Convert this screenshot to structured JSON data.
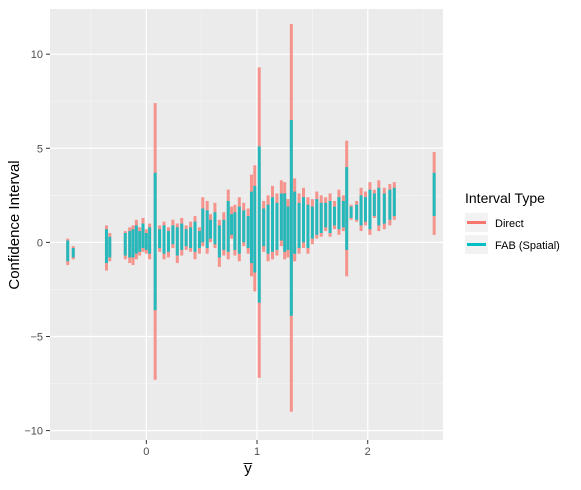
{
  "chart_data": {
    "type": "interval",
    "xlabel": "y̅",
    "ylabel": "Confidence Interval",
    "xlim": [
      -0.87,
      2.68
    ],
    "ylim": [
      -10.5,
      12.4
    ],
    "x_ticks": [
      {
        "value": 0,
        "label": "0"
      },
      {
        "value": 1,
        "label": "1"
      },
      {
        "value": 2,
        "label": "2"
      }
    ],
    "y_ticks": [
      {
        "value": -10,
        "label": "−10"
      },
      {
        "value": -5,
        "label": "−5"
      },
      {
        "value": 0,
        "label": "0"
      },
      {
        "value": 5,
        "label": "5"
      },
      {
        "value": 10,
        "label": "10"
      }
    ],
    "grid": true,
    "legend": {
      "title": "Interval Type",
      "placement": "right",
      "entries": [
        {
          "label": "Direct",
          "color": "#F8766D"
        },
        {
          "label": "FAB (Spatial)",
          "color": "#00BFC4"
        }
      ]
    },
    "series": [
      {
        "name": "Direct",
        "color": "#F8766D",
        "intervals": [
          {
            "x": -0.71,
            "low": -1.2,
            "high": 0.2
          },
          {
            "x": -0.66,
            "low": -0.9,
            "high": -0.2
          },
          {
            "x": -0.36,
            "low": -1.5,
            "high": 0.9
          },
          {
            "x": -0.33,
            "low": -1.0,
            "high": 0.5
          },
          {
            "x": -0.19,
            "low": -0.9,
            "high": 0.6
          },
          {
            "x": -0.15,
            "low": -1.1,
            "high": 0.8
          },
          {
            "x": -0.12,
            "low": -1.2,
            "high": 0.9
          },
          {
            "x": -0.09,
            "low": -0.9,
            "high": 1.2
          },
          {
            "x": -0.06,
            "low": -0.7,
            "high": 0.8
          },
          {
            "x": -0.03,
            "low": -0.5,
            "high": 1.3
          },
          {
            "x": 0.0,
            "low": -0.6,
            "high": 0.7
          },
          {
            "x": 0.03,
            "low": -0.9,
            "high": 1.0
          },
          {
            "x": 0.08,
            "low": -7.3,
            "high": 7.4
          },
          {
            "x": 0.12,
            "low": -0.5,
            "high": 0.9
          },
          {
            "x": 0.16,
            "low": -0.9,
            "high": 1.1
          },
          {
            "x": 0.2,
            "low": -0.8,
            "high": 0.8
          },
          {
            "x": 0.24,
            "low": -0.3,
            "high": 1.2
          },
          {
            "x": 0.28,
            "low": -1.1,
            "high": 1.0
          },
          {
            "x": 0.32,
            "low": -0.7,
            "high": 1.3
          },
          {
            "x": 0.36,
            "low": -0.4,
            "high": 0.9
          },
          {
            "x": 0.4,
            "low": -0.5,
            "high": 1.1
          },
          {
            "x": 0.44,
            "low": -0.9,
            "high": 1.4
          },
          {
            "x": 0.48,
            "low": -0.6,
            "high": 0.8
          },
          {
            "x": 0.51,
            "low": -0.2,
            "high": 2.4
          },
          {
            "x": 0.55,
            "low": -0.6,
            "high": 2.2
          },
          {
            "x": 0.58,
            "low": 0.0,
            "high": 1.5
          },
          {
            "x": 0.62,
            "low": -0.3,
            "high": 2.1
          },
          {
            "x": 0.66,
            "low": -1.3,
            "high": 1.2
          },
          {
            "x": 0.7,
            "low": -0.7,
            "high": 1.6
          },
          {
            "x": 0.74,
            "low": -0.9,
            "high": 2.8
          },
          {
            "x": 0.77,
            "low": 0.2,
            "high": 1.9
          },
          {
            "x": 0.8,
            "low": -0.7,
            "high": 2.0
          },
          {
            "x": 0.84,
            "low": -1.0,
            "high": 2.4
          },
          {
            "x": 0.88,
            "low": -0.2,
            "high": 2.1
          },
          {
            "x": 0.92,
            "low": -0.6,
            "high": 1.8
          },
          {
            "x": 0.95,
            "low": -1.8,
            "high": 3.6
          },
          {
            "x": 0.98,
            "low": -2.6,
            "high": 4.1
          },
          {
            "x": 1.02,
            "low": -7.2,
            "high": 9.3
          },
          {
            "x": 1.06,
            "low": -0.5,
            "high": 2.2
          },
          {
            "x": 1.1,
            "low": -1.0,
            "high": 2.5
          },
          {
            "x": 1.14,
            "low": -0.9,
            "high": 3.0
          },
          {
            "x": 1.18,
            "low": -0.7,
            "high": 2.6
          },
          {
            "x": 1.22,
            "low": -0.2,
            "high": 3.3
          },
          {
            "x": 1.25,
            "low": -0.9,
            "high": 3.2
          },
          {
            "x": 1.28,
            "low": -0.8,
            "high": 2.3
          },
          {
            "x": 1.31,
            "low": -9.0,
            "high": 11.6
          },
          {
            "x": 1.34,
            "low": -1.0,
            "high": 3.4
          },
          {
            "x": 1.38,
            "low": -0.6,
            "high": 2.6
          },
          {
            "x": 1.42,
            "low": -0.3,
            "high": 2.9
          },
          {
            "x": 1.46,
            "low": -0.6,
            "high": 2.4
          },
          {
            "x": 1.5,
            "low": -0.1,
            "high": 2.3
          },
          {
            "x": 1.54,
            "low": 0.2,
            "high": 2.7
          },
          {
            "x": 1.58,
            "low": 0.3,
            "high": 2.5
          },
          {
            "x": 1.62,
            "low": 0.6,
            "high": 2.4
          },
          {
            "x": 1.66,
            "low": 0.3,
            "high": 2.6
          },
          {
            "x": 1.7,
            "low": 0.7,
            "high": 2.2
          },
          {
            "x": 1.74,
            "low": 0.4,
            "high": 2.8
          },
          {
            "x": 1.78,
            "low": 0.6,
            "high": 2.5
          },
          {
            "x": 1.81,
            "low": -1.8,
            "high": 5.4
          },
          {
            "x": 1.85,
            "low": 1.2,
            "high": 2.0
          },
          {
            "x": 1.9,
            "low": 1.1,
            "high": 2.2
          },
          {
            "x": 1.94,
            "low": 0.6,
            "high": 2.9
          },
          {
            "x": 1.98,
            "low": 0.9,
            "high": 2.7
          },
          {
            "x": 2.02,
            "low": 0.4,
            "high": 3.2
          },
          {
            "x": 2.06,
            "low": 1.3,
            "high": 2.8
          },
          {
            "x": 2.1,
            "low": 0.6,
            "high": 3.3
          },
          {
            "x": 2.15,
            "low": 0.7,
            "high": 2.9
          },
          {
            "x": 2.2,
            "low": 0.9,
            "high": 3.1
          },
          {
            "x": 2.24,
            "low": 1.2,
            "high": 3.2
          },
          {
            "x": 2.6,
            "low": 0.4,
            "high": 4.8
          }
        ]
      },
      {
        "name": "FAB (Spatial)",
        "color": "#00BFC4",
        "intervals": [
          {
            "x": -0.71,
            "low": -1.0,
            "high": 0.1
          },
          {
            "x": -0.66,
            "low": -0.8,
            "high": -0.3
          },
          {
            "x": -0.36,
            "low": -1.1,
            "high": 0.7
          },
          {
            "x": -0.33,
            "low": -0.8,
            "high": 0.3
          },
          {
            "x": -0.19,
            "low": -0.7,
            "high": 0.5
          },
          {
            "x": -0.15,
            "low": -0.8,
            "high": 0.6
          },
          {
            "x": -0.12,
            "low": -0.8,
            "high": 0.7
          },
          {
            "x": -0.09,
            "low": -0.6,
            "high": 0.9
          },
          {
            "x": -0.06,
            "low": -0.5,
            "high": 0.6
          },
          {
            "x": -0.03,
            "low": -0.3,
            "high": 1.0
          },
          {
            "x": 0.0,
            "low": -0.4,
            "high": 0.5
          },
          {
            "x": 0.03,
            "low": -0.6,
            "high": 0.8
          },
          {
            "x": 0.08,
            "low": -3.6,
            "high": 3.7
          },
          {
            "x": 0.12,
            "low": -0.3,
            "high": 0.7
          },
          {
            "x": 0.16,
            "low": -0.6,
            "high": 0.9
          },
          {
            "x": 0.2,
            "low": -0.5,
            "high": 0.6
          },
          {
            "x": 0.24,
            "low": -0.1,
            "high": 0.9
          },
          {
            "x": 0.28,
            "low": -0.7,
            "high": 0.8
          },
          {
            "x": 0.32,
            "low": -0.4,
            "high": 1.0
          },
          {
            "x": 0.36,
            "low": -0.2,
            "high": 0.7
          },
          {
            "x": 0.4,
            "low": -0.3,
            "high": 0.8
          },
          {
            "x": 0.44,
            "low": -0.5,
            "high": 1.1
          },
          {
            "x": 0.48,
            "low": -0.3,
            "high": 0.6
          },
          {
            "x": 0.51,
            "low": 0.0,
            "high": 1.8
          },
          {
            "x": 0.55,
            "low": -0.3,
            "high": 1.7
          },
          {
            "x": 0.58,
            "low": 0.2,
            "high": 1.2
          },
          {
            "x": 0.62,
            "low": -0.1,
            "high": 1.6
          },
          {
            "x": 0.66,
            "low": -0.8,
            "high": 0.9
          },
          {
            "x": 0.7,
            "low": -0.4,
            "high": 1.2
          },
          {
            "x": 0.74,
            "low": -0.5,
            "high": 2.2
          },
          {
            "x": 0.77,
            "low": 0.4,
            "high": 1.5
          },
          {
            "x": 0.8,
            "low": -0.4,
            "high": 1.6
          },
          {
            "x": 0.84,
            "low": -0.6,
            "high": 1.9
          },
          {
            "x": 0.88,
            "low": 0.0,
            "high": 1.7
          },
          {
            "x": 0.92,
            "low": -0.3,
            "high": 1.4
          },
          {
            "x": 0.95,
            "low": -1.1,
            "high": 2.7
          },
          {
            "x": 0.98,
            "low": -1.6,
            "high": 3.0
          },
          {
            "x": 1.02,
            "low": -3.2,
            "high": 5.1
          },
          {
            "x": 1.06,
            "low": -0.2,
            "high": 1.8
          },
          {
            "x": 1.1,
            "low": -0.6,
            "high": 2.0
          },
          {
            "x": 1.14,
            "low": -0.5,
            "high": 2.4
          },
          {
            "x": 1.18,
            "low": -0.4,
            "high": 2.1
          },
          {
            "x": 1.22,
            "low": 0.1,
            "high": 2.6
          },
          {
            "x": 1.25,
            "low": -0.5,
            "high": 2.6
          },
          {
            "x": 1.28,
            "low": -0.4,
            "high": 1.9
          },
          {
            "x": 1.31,
            "low": -3.9,
            "high": 6.5
          },
          {
            "x": 1.34,
            "low": -0.6,
            "high": 2.7
          },
          {
            "x": 1.38,
            "low": -0.3,
            "high": 2.1
          },
          {
            "x": 1.42,
            "low": 0.0,
            "high": 2.4
          },
          {
            "x": 1.46,
            "low": -0.3,
            "high": 2.0
          },
          {
            "x": 1.5,
            "low": 0.2,
            "high": 1.9
          },
          {
            "x": 1.54,
            "low": 0.4,
            "high": 2.3
          },
          {
            "x": 1.58,
            "low": 0.5,
            "high": 2.1
          },
          {
            "x": 1.62,
            "low": 0.8,
            "high": 2.1
          },
          {
            "x": 1.66,
            "low": 0.5,
            "high": 2.2
          },
          {
            "x": 1.7,
            "low": 0.9,
            "high": 1.9
          },
          {
            "x": 1.74,
            "low": 0.7,
            "high": 2.4
          },
          {
            "x": 1.78,
            "low": 0.8,
            "high": 2.2
          },
          {
            "x": 1.81,
            "low": -0.4,
            "high": 4.0
          },
          {
            "x": 1.85,
            "low": 1.3,
            "high": 1.9
          },
          {
            "x": 1.9,
            "low": 1.2,
            "high": 2.0
          },
          {
            "x": 1.94,
            "low": 0.9,
            "high": 2.5
          },
          {
            "x": 1.98,
            "low": 1.1,
            "high": 2.4
          },
          {
            "x": 2.02,
            "low": 0.7,
            "high": 2.8
          },
          {
            "x": 2.06,
            "low": 1.4,
            "high": 2.6
          },
          {
            "x": 2.1,
            "low": 0.9,
            "high": 2.9
          },
          {
            "x": 2.15,
            "low": 1.0,
            "high": 2.6
          },
          {
            "x": 2.2,
            "low": 1.2,
            "high": 2.8
          },
          {
            "x": 2.24,
            "low": 1.4,
            "high": 2.9
          },
          {
            "x": 2.6,
            "low": 1.4,
            "high": 3.7
          }
        ]
      }
    ]
  }
}
